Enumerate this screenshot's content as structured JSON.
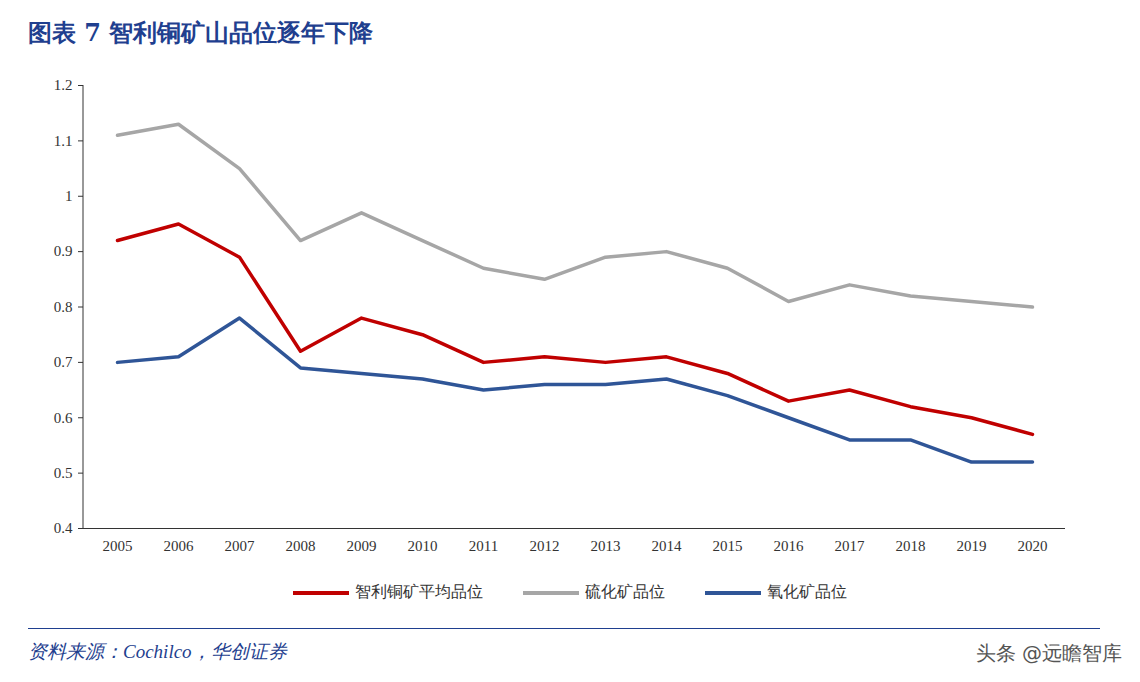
{
  "chart_data": {
    "type": "line",
    "title": "图表 7 智利铜矿山品位逐年下降",
    "source": "资料来源：Cochilco，华创证券",
    "watermark": "头条 @远瞻智库",
    "categories": [
      "2005",
      "2006",
      "2007",
      "2008",
      "2009",
      "2010",
      "2011",
      "2012",
      "2013",
      "2014",
      "2015",
      "2016",
      "2017",
      "2018",
      "2019",
      "2020"
    ],
    "series": [
      {
        "name": "智利铜矿平均品位",
        "color": "#c00000",
        "values": [
          0.92,
          0.95,
          0.89,
          0.72,
          0.78,
          0.75,
          0.7,
          0.71,
          0.7,
          0.71,
          0.68,
          0.63,
          0.65,
          0.62,
          0.6,
          0.57
        ]
      },
      {
        "name": "硫化矿品位",
        "color": "#a6a6a6",
        "values": [
          1.11,
          1.13,
          1.05,
          0.92,
          0.97,
          0.92,
          0.87,
          0.85,
          0.89,
          0.9,
          0.87,
          0.81,
          0.84,
          0.82,
          0.81,
          0.8
        ]
      },
      {
        "name": "氧化矿品位",
        "color": "#2f5597",
        "values": [
          0.7,
          0.71,
          0.78,
          0.69,
          0.68,
          0.67,
          0.65,
          0.66,
          0.66,
          0.67,
          0.64,
          0.6,
          0.56,
          0.56,
          0.52,
          0.52
        ]
      }
    ],
    "ylim": [
      0.4,
      1.2
    ],
    "yticks": [
      0.4,
      0.5,
      0.6,
      0.7,
      0.8,
      0.9,
      1,
      1.1,
      1.2
    ],
    "grid": false,
    "legend": "bottom"
  }
}
